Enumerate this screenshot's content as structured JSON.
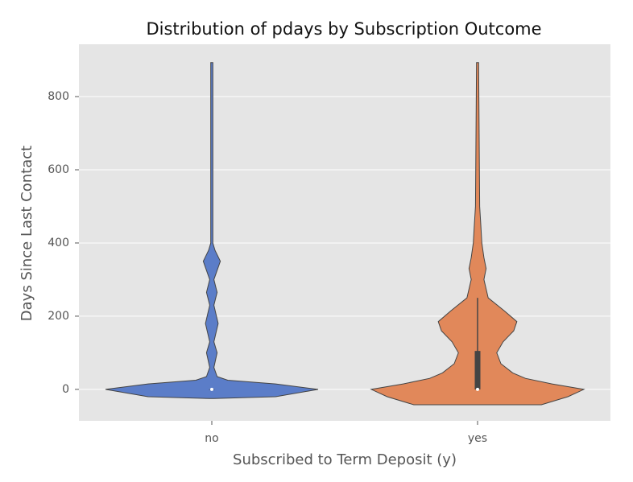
{
  "chart_data": {
    "type": "violin",
    "title": "Distribution of pdays by Subscription Outcome",
    "xlabel": "Subscribed to Term Deposit (y)",
    "ylabel": "Days Since Last Contact",
    "categories": [
      "no",
      "yes"
    ],
    "ylim": [
      -86,
      943
    ],
    "yticks": [
      0,
      200,
      400,
      600,
      800
    ],
    "grid": true,
    "series": [
      {
        "color": "#5b7dc8",
        "violin_y": [
          -25,
          -20,
          0,
          15,
          25,
          35,
          60,
          100,
          130,
          180,
          230,
          265,
          300,
          350,
          380,
          400,
          500,
          893
        ],
        "density": [
          0.02,
          0.6,
          1.0,
          0.6,
          0.15,
          0.05,
          0.02,
          0.05,
          0.02,
          0.06,
          0.02,
          0.05,
          0.02,
          0.08,
          0.03,
          0.01,
          0.01,
          0.01
        ],
        "box": {
          "whisker_low": 0,
          "q1": 0,
          "median": 0,
          "q3": 0,
          "whisker_high": 0
        }
      },
      {
        "color": "#e1885a",
        "violin_y": [
          -42,
          -20,
          0,
          15,
          30,
          45,
          70,
          100,
          130,
          160,
          185,
          215,
          250,
          300,
          330,
          360,
          400,
          450,
          500,
          893
        ],
        "density": [
          0.6,
          0.85,
          1.0,
          0.7,
          0.45,
          0.33,
          0.22,
          0.18,
          0.24,
          0.34,
          0.37,
          0.25,
          0.1,
          0.06,
          0.08,
          0.06,
          0.04,
          0.03,
          0.02,
          0.01
        ],
        "box": {
          "whisker_low": 0,
          "q1": 0,
          "median": 0,
          "q3": 105,
          "whisker_high": 250
        }
      }
    ]
  }
}
